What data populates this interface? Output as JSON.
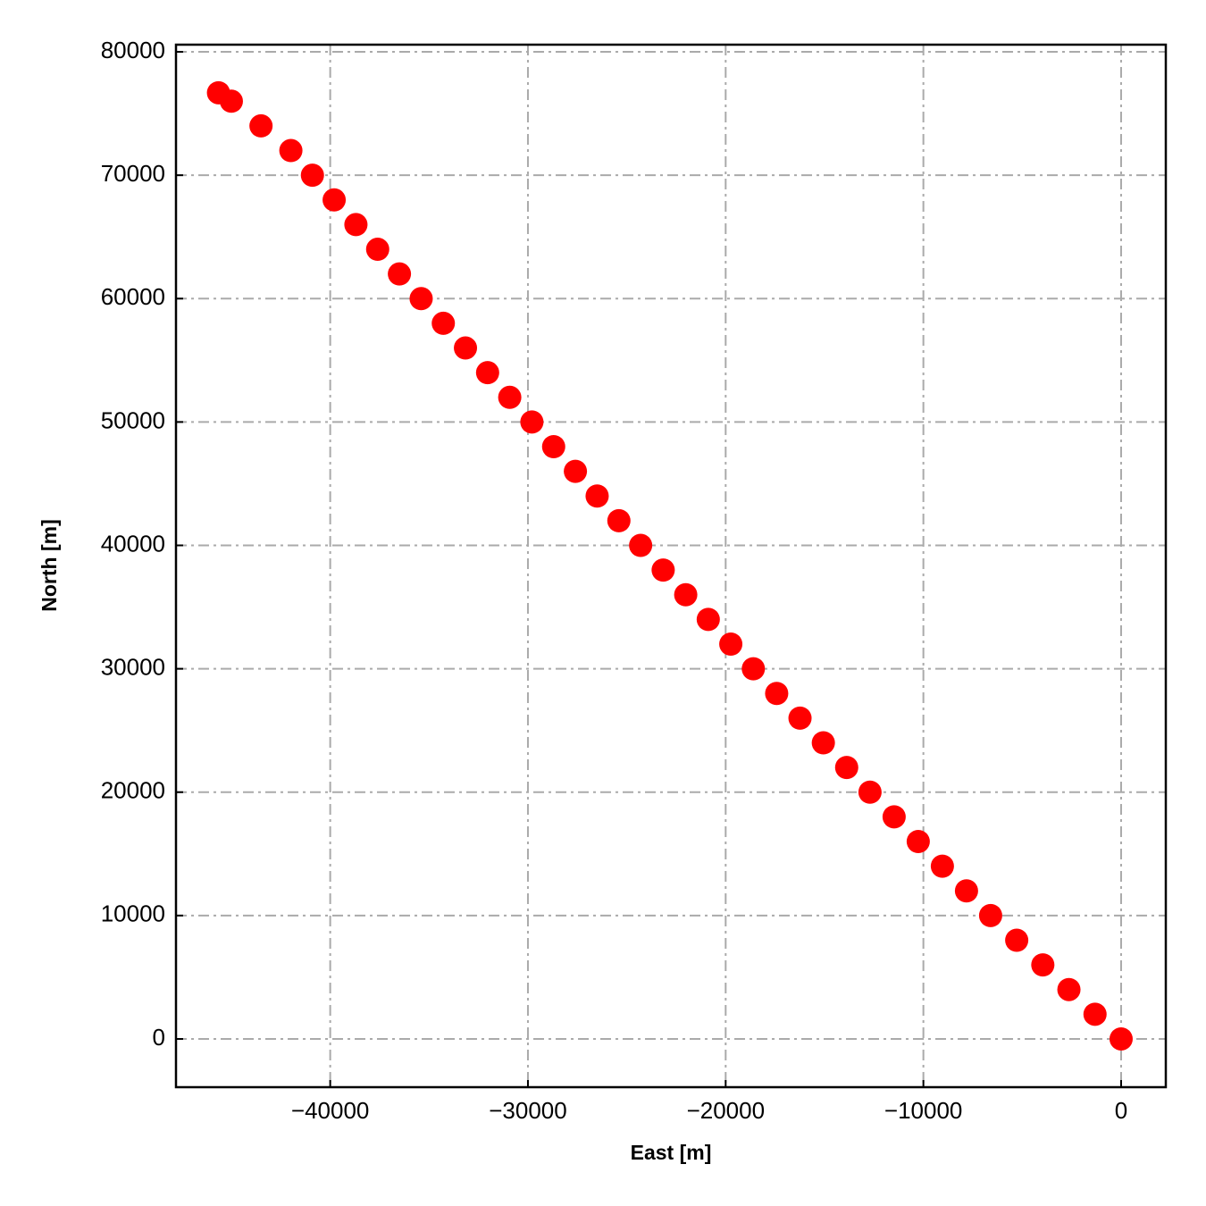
{
  "chart_data": {
    "type": "scatter",
    "xlabel": "East [m]",
    "ylabel": "North [m]",
    "x": [
      0,
      -1320,
      -2640,
      -3960,
      -5280,
      -6600,
      -7820,
      -9040,
      -10260,
      -11480,
      -12700,
      -13880,
      -15060,
      -16240,
      -17420,
      -18600,
      -19740,
      -20880,
      -22020,
      -23160,
      -24300,
      -25400,
      -26500,
      -27600,
      -28700,
      -29800,
      -30920,
      -32040,
      -33160,
      -34280,
      -35400,
      -36500,
      -37600,
      -38700,
      -39800,
      -40900,
      -41990,
      -43500,
      -45000,
      -45650
    ],
    "values": [
      0,
      2000,
      4000,
      6000,
      8000,
      10000,
      12000,
      14000,
      16000,
      18000,
      20000,
      22000,
      24000,
      26000,
      28000,
      30000,
      32000,
      34000,
      36000,
      38000,
      40000,
      42000,
      44000,
      46000,
      48000,
      50000,
      52000,
      54000,
      56000,
      58000,
      60000,
      62000,
      64000,
      66000,
      68000,
      70000,
      72000,
      74000,
      76000,
      76680
    ],
    "color": "#ff0000",
    "xlim": [
      -47800,
      2260
    ],
    "ylim": [
      -3910,
      80580
    ],
    "xticks": [
      {
        "value": -40000,
        "label": "−40000"
      },
      {
        "value": -30000,
        "label": "−30000"
      },
      {
        "value": -20000,
        "label": "−20000"
      },
      {
        "value": -10000,
        "label": "−10000"
      },
      0
    ],
    "yticks": [
      0,
      10000,
      20000,
      30000,
      40000,
      50000,
      60000,
      70000,
      80000
    ],
    "grid": true
  }
}
